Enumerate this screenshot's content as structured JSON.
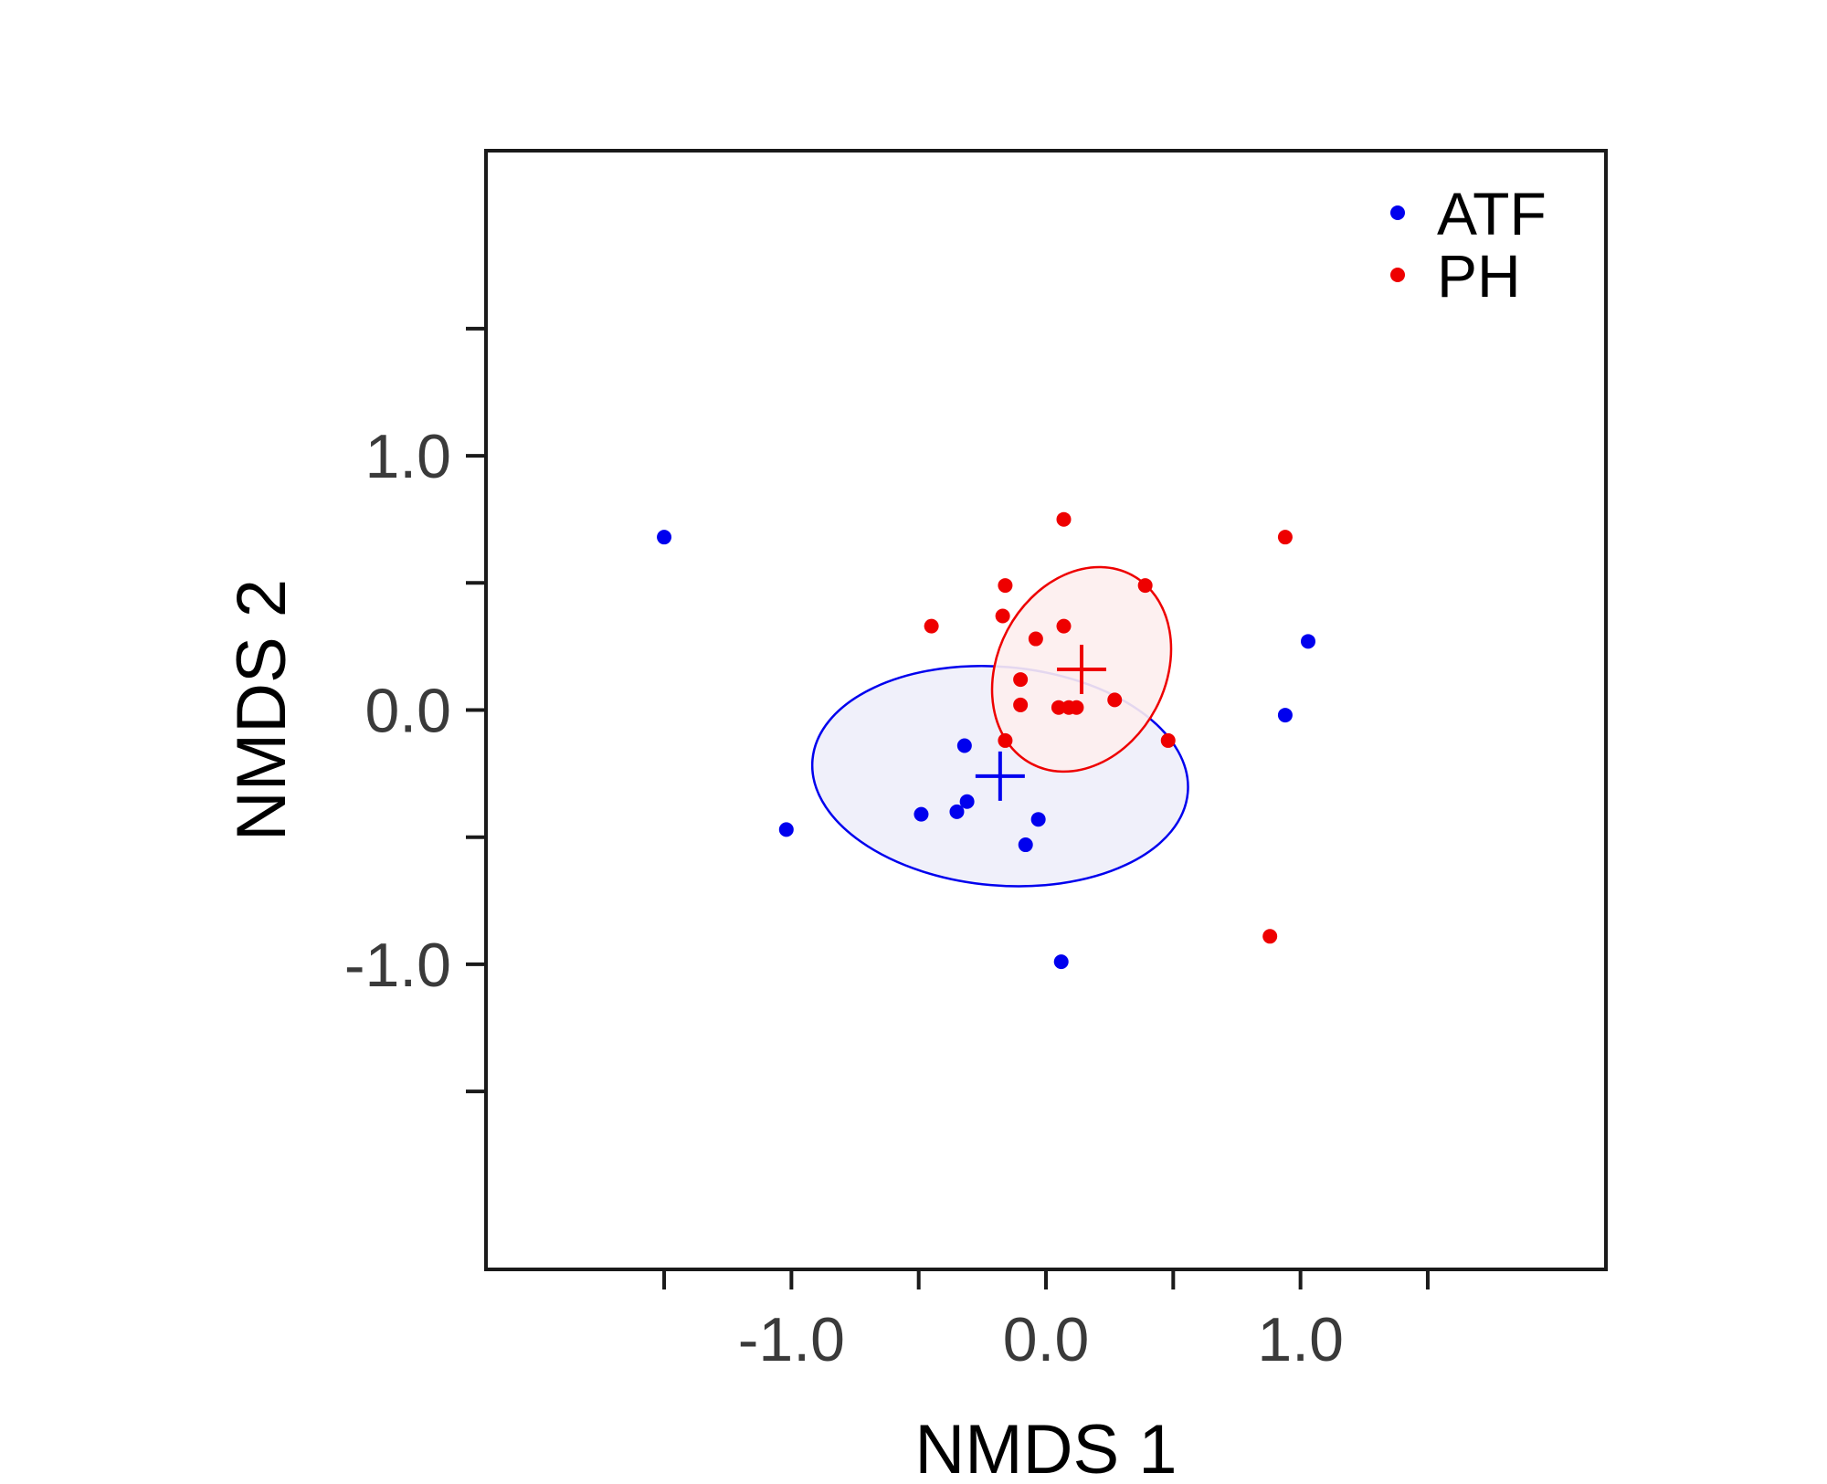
{
  "chart_data": {
    "type": "scatter",
    "title": "",
    "xlabel": "NMDS 1",
    "ylabel": "NMDS 2",
    "xlim": [
      -2.2,
      2.2
    ],
    "ylim": [
      -2.2,
      2.2
    ],
    "x_major_ticks": [
      -1.0,
      0.0,
      1.0
    ],
    "x_minor_ticks": [
      -1.5,
      -0.5,
      0.5,
      1.5
    ],
    "y_major_ticks": [
      -1.0,
      0.0,
      1.0
    ],
    "y_minor_ticks": [
      -1.5,
      -0.5,
      0.5,
      1.5
    ],
    "x_tick_labels": [
      "-1.0",
      "0.0",
      "1.0"
    ],
    "y_tick_labels": [
      "-1.0",
      "0.0",
      "1.0"
    ],
    "grid": false,
    "legend_position": "top-right",
    "series": [
      {
        "name": "ATF",
        "color": "#0000ee",
        "points": [
          {
            "x": -1.5,
            "y": 0.68
          },
          {
            "x": -1.02,
            "y": -0.47
          },
          {
            "x": -0.49,
            "y": -0.41
          },
          {
            "x": -0.35,
            "y": -0.4
          },
          {
            "x": -0.32,
            "y": -0.14
          },
          {
            "x": -0.31,
            "y": -0.36
          },
          {
            "x": -0.08,
            "y": -0.53
          },
          {
            "x": -0.03,
            "y": -0.43
          },
          {
            "x": 0.06,
            "y": -0.99
          },
          {
            "x": 0.94,
            "y": -0.02
          },
          {
            "x": 1.03,
            "y": 0.27
          }
        ],
        "centroid": {
          "x": -0.18,
          "y": -0.26
        },
        "ellipse": {
          "cx": -0.18,
          "cy": -0.26,
          "rx": 0.74,
          "ry": 0.43,
          "angle_deg": -5,
          "fill": "#eeeefa",
          "stroke": "#0000ee"
        }
      },
      {
        "name": "PH",
        "color": "#ee0000",
        "points": [
          {
            "x": -0.45,
            "y": 0.33
          },
          {
            "x": -0.16,
            "y": 0.49
          },
          {
            "x": -0.17,
            "y": 0.37
          },
          {
            "x": -0.16,
            "y": -0.12
          },
          {
            "x": -0.1,
            "y": 0.12
          },
          {
            "x": -0.1,
            "y": 0.02
          },
          {
            "x": -0.04,
            "y": 0.28
          },
          {
            "x": 0.05,
            "y": 0.01
          },
          {
            "x": 0.07,
            "y": 0.75
          },
          {
            "x": 0.07,
            "y": 0.33
          },
          {
            "x": 0.09,
            "y": 0.01
          },
          {
            "x": 0.12,
            "y": 0.01
          },
          {
            "x": 0.27,
            "y": 0.04
          },
          {
            "x": 0.39,
            "y": 0.49
          },
          {
            "x": 0.48,
            "y": -0.12
          },
          {
            "x": 0.88,
            "y": -0.89
          },
          {
            "x": 0.94,
            "y": 0.68
          }
        ],
        "centroid": {
          "x": 0.14,
          "y": 0.16
        },
        "ellipse": {
          "cx": 0.14,
          "cy": 0.16,
          "rx": 0.42,
          "ry": 0.33,
          "angle_deg": 62,
          "fill": "#fdeeee",
          "stroke": "#ee0000"
        }
      }
    ]
  }
}
